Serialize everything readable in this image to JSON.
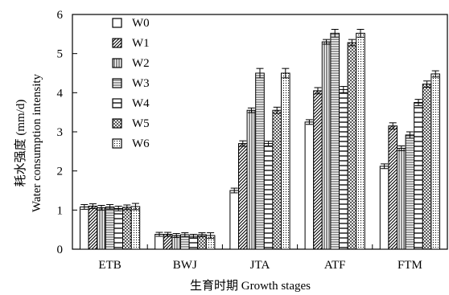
{
  "chart_data": {
    "type": "bar",
    "categories": [
      "ETB",
      "BWJ",
      "JTA",
      "ATF",
      "FTM"
    ],
    "series": [
      {
        "name": "W0",
        "pattern": "white",
        "values": [
          1.08,
          0.38,
          1.5,
          3.25,
          2.12
        ],
        "errors": [
          0.06,
          0.05,
          0.06,
          0.06,
          0.06
        ]
      },
      {
        "name": "W1",
        "pattern": "diag",
        "values": [
          1.1,
          0.38,
          2.7,
          4.05,
          3.15
        ],
        "errors": [
          0.06,
          0.05,
          0.07,
          0.08,
          0.08
        ]
      },
      {
        "name": "W2",
        "pattern": "vert",
        "values": [
          1.06,
          0.35,
          3.55,
          5.3,
          2.58
        ],
        "errors": [
          0.06,
          0.05,
          0.06,
          0.06,
          0.06
        ]
      },
      {
        "name": "W3",
        "pattern": "hdense",
        "values": [
          1.08,
          0.37,
          4.5,
          5.52,
          2.92
        ],
        "errors": [
          0.06,
          0.05,
          0.12,
          0.1,
          0.08
        ]
      },
      {
        "name": "W4",
        "pattern": "hlines",
        "values": [
          1.04,
          0.33,
          2.7,
          4.08,
          3.75
        ],
        "errors": [
          0.06,
          0.05,
          0.06,
          0.08,
          0.08
        ]
      },
      {
        "name": "W5",
        "pattern": "check",
        "values": [
          1.07,
          0.37,
          3.55,
          5.28,
          4.22
        ],
        "errors": [
          0.06,
          0.05,
          0.08,
          0.08,
          0.08
        ]
      },
      {
        "name": "W6",
        "pattern": "dots",
        "values": [
          1.09,
          0.35,
          4.5,
          5.52,
          4.48
        ],
        "errors": [
          0.08,
          0.07,
          0.12,
          0.1,
          0.08
        ]
      }
    ],
    "ylabel_zh": "耗水强度 (mm/d)",
    "ylabel_en": "Water consumption intensity",
    "xlabel": "生育时期 Growth stages",
    "ylim": [
      0,
      6
    ],
    "yticks": [
      "0",
      "1",
      "2",
      "3",
      "4",
      "5",
      "6"
    ],
    "grid": false,
    "legend_position": "top-left"
  }
}
